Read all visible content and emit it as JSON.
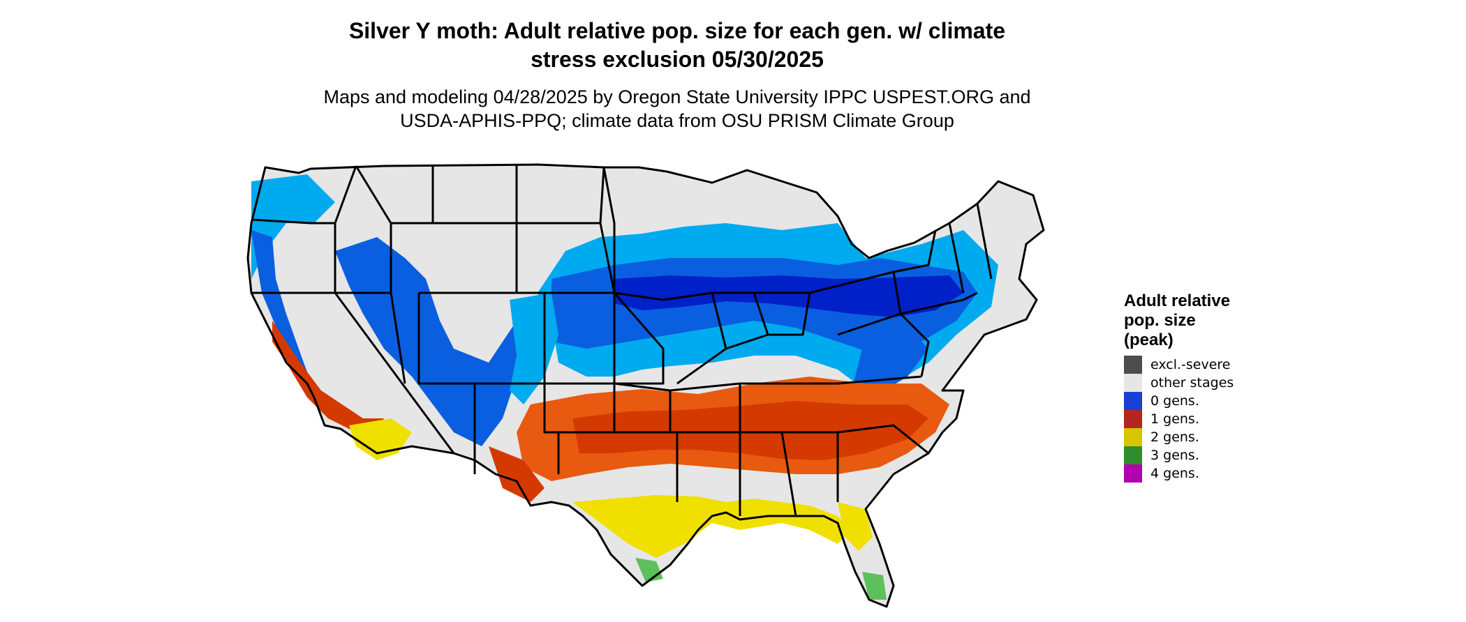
{
  "title_line1": "Silver Y moth: Adult relative pop. size for each gen. w/ climate",
  "title_line2": "stress exclusion 05/30/2025",
  "subtitle_line1": "Maps and modeling 04/28/2025 by Oregon State University IPPC USPEST.ORG and",
  "subtitle_line2": "USDA-APHIS-PPQ; climate data from OSU PRISM Climate Group",
  "legend": {
    "title_line1": "Adult relative",
    "title_line2": "pop. size",
    "title_line3": "(peak)",
    "items": [
      {
        "label": "excl.-severe",
        "color": "#4d4d4d"
      },
      {
        "label": "other stages",
        "color": "#e6e6e6"
      },
      {
        "label": "0 gens.",
        "color": "#1a3fd6"
      },
      {
        "label": "1 gens.",
        "color": "#b3261e"
      },
      {
        "label": "2 gens.",
        "color": "#d9c400"
      },
      {
        "label": "3 gens.",
        "color": "#2e8b2e"
      },
      {
        "label": "4 gens.",
        "color": "#b000b0"
      }
    ]
  },
  "map_colors": {
    "land": "#e6e6e6",
    "border": "#000000",
    "gen0_light": "#00aaee",
    "gen0_mid": "#0a5fe0",
    "gen0_dark": "#0020c8",
    "gen1_red": "#d43a00",
    "gen1_orange": "#e85a10",
    "gen2_yellow": "#f0e000",
    "gen3_green": "#5dc05d"
  }
}
